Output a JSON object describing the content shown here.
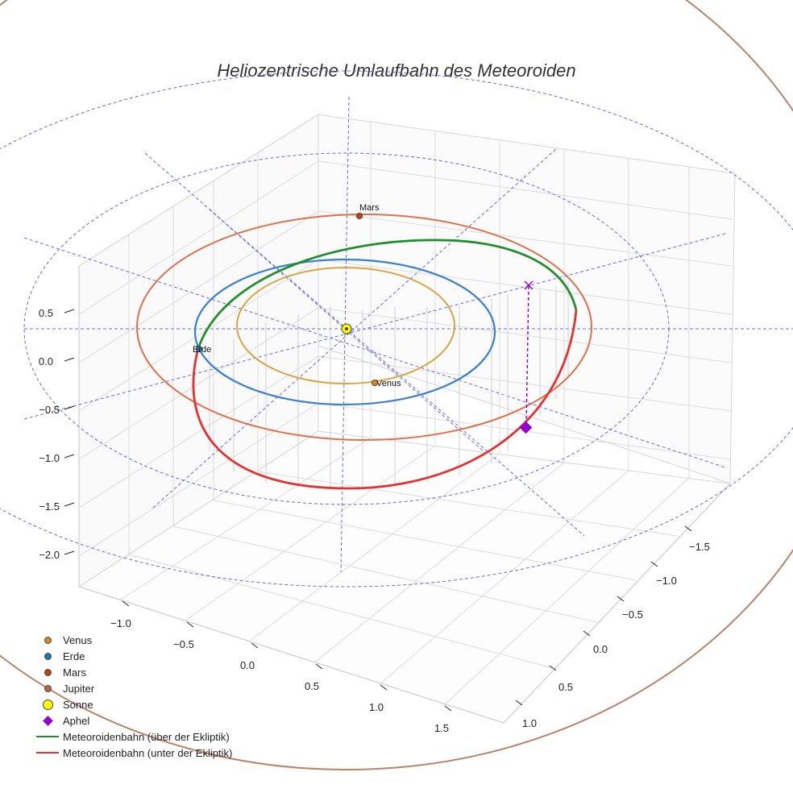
{
  "chart_data": {
    "type": "3d-line",
    "title": "Heliozentrische Umlaufbahn des Meteoroiden",
    "axes": {
      "z_ticks": [
        "0.5",
        "0.0",
        "−0.5",
        "−1.0",
        "−1.5",
        "−2.0"
      ],
      "x_ticks": [
        "−1.0",
        "−0.5",
        "0.0",
        "0.5",
        "1.0",
        "1.5"
      ],
      "y_ticks": [
        "−1.5",
        "−1.0",
        "−0.5",
        "0.0",
        "0.5",
        "1.0"
      ]
    },
    "orbit_radii_au": {
      "venus": 0.72,
      "erde": 1.0,
      "mars": 1.52,
      "jupiter": 5.2
    },
    "planet_labels": [
      {
        "id": "mars",
        "text": "Mars"
      },
      {
        "id": "erde",
        "text": "Erde"
      },
      {
        "id": "venus",
        "text": "Venus"
      }
    ],
    "series": [
      {
        "name": "Venus",
        "marker": "dot",
        "color": "#d98a1e"
      },
      {
        "name": "Erde",
        "marker": "dot",
        "color": "#1f77b4"
      },
      {
        "name": "Mars",
        "marker": "dot",
        "color": "#c1440e"
      },
      {
        "name": "Jupiter",
        "marker": "dot",
        "color": "#b5683f"
      },
      {
        "name": "Sonne",
        "marker": "sun",
        "color": "#ffff00"
      },
      {
        "name": "Aphel",
        "marker": "diamond",
        "color": "#9400d3"
      },
      {
        "name": "Meteoroidenbahn (über der Ekliptik)",
        "marker": "line",
        "color": "#1f8f2a"
      },
      {
        "name": "Meteoroidenbahn (unter der Ekliptik)",
        "marker": "line",
        "color": "#e83030"
      }
    ],
    "colors": {
      "venus_orbit": "#d9a544",
      "erde_orbit": "#3a7fd0",
      "mars_orbit": "#e0704a",
      "jupiter_orbit": "#b9826a",
      "grid_ref": "#6a6ae0",
      "grid": "#d6d6d6"
    }
  }
}
